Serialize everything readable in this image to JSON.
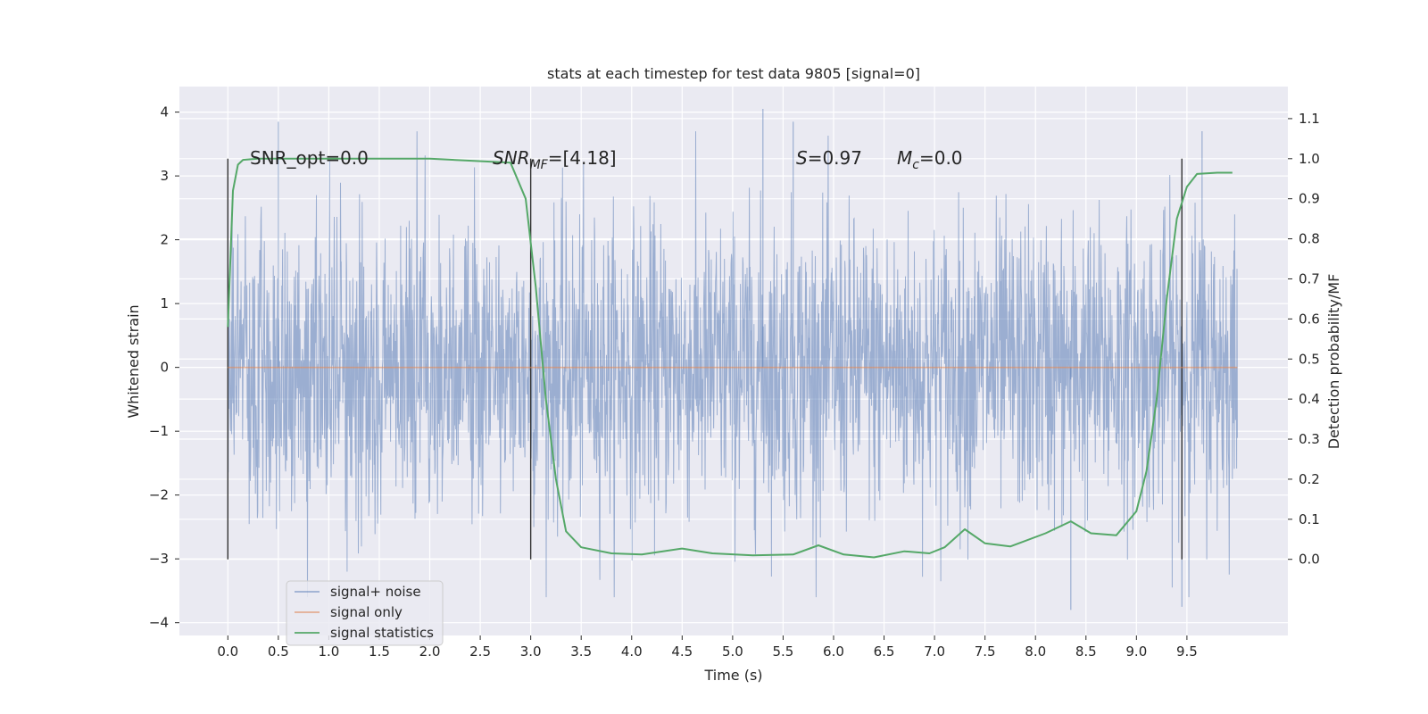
{
  "chart_data": {
    "type": "line",
    "title": "stats at each timestep for test data 9805 [signal=0]",
    "xlabel": "Time (s)",
    "ylabel": "Whitened strain",
    "ylabel_right": "Detection probability/MF",
    "xlim": [
      -0.48,
      10.5
    ],
    "ylim": [
      -4.2,
      4.4
    ],
    "ylim_right": [
      -0.19,
      1.18
    ],
    "x_ticks": [
      "0.0",
      "0.5",
      "1.0",
      "1.5",
      "2.0",
      "2.5",
      "3.0",
      "3.5",
      "4.0",
      "4.5",
      "5.0",
      "5.5",
      "6.0",
      "6.5",
      "7.0",
      "7.5",
      "8.0",
      "8.5",
      "9.0",
      "9.5"
    ],
    "y_ticks": [
      "4",
      "3",
      "2",
      "1",
      "0",
      "−1",
      "−2",
      "−3",
      "−4"
    ],
    "y_right_ticks": [
      "1.1",
      "1.0",
      "0.9",
      "0.8",
      "0.7",
      "0.6",
      "0.5",
      "0.4",
      "0.3",
      "0.2",
      "0.1",
      "0.0"
    ],
    "grid": true,
    "legend_position": "lower-left",
    "background": "#eaeaf2",
    "annotations": [
      {
        "text": "SNR_opt=0.0",
        "x": 0.2,
        "y_right": 0.99
      },
      {
        "text": "SNR_MF=[4.18]",
        "x": 2.6,
        "y_right": 0.99
      },
      {
        "text": "S=0.97",
        "x": 5.6,
        "y_right": 0.99
      },
      {
        "text": "M_c=0.0",
        "x": 6.6,
        "y_right": 0.99
      }
    ],
    "vertical_markers": [
      0.0,
      3.0,
      9.45
    ],
    "series": [
      {
        "name": "signal+ noise",
        "color": "#4c72b0",
        "axis": "left",
        "time_range": [
          0.0,
          10.0
        ],
        "typical_range": [
          -1.1,
          1.3
        ],
        "peak_range": [
          -3.8,
          3.9
        ],
        "notable_peaks": [
          [
            0.5,
            3.85
          ],
          [
            5.3,
            4.05
          ],
          [
            5.6,
            3.85
          ],
          [
            9.65,
            3.7
          ],
          [
            8.35,
            -3.8
          ],
          [
            9.45,
            -3.75
          ]
        ]
      },
      {
        "name": "signal only",
        "color": "#dd8452",
        "axis": "left",
        "x": [
          0.0,
          10.0
        ],
        "y": [
          0.0,
          0.0
        ]
      },
      {
        "name": "signal statistics",
        "color": "#55a868",
        "axis": "right",
        "x": [
          0.0,
          0.05,
          0.1,
          0.15,
          0.3,
          1.0,
          2.0,
          2.8,
          2.95,
          3.05,
          3.15,
          3.25,
          3.35,
          3.5,
          3.8,
          4.1,
          4.5,
          4.8,
          5.2,
          5.6,
          5.85,
          6.1,
          6.4,
          6.7,
          6.95,
          7.1,
          7.3,
          7.5,
          7.75,
          8.1,
          8.35,
          8.55,
          8.8,
          9.0,
          9.1,
          9.2,
          9.3,
          9.4,
          9.5,
          9.6,
          9.8,
          9.95
        ],
        "y": [
          0.58,
          0.92,
          0.985,
          0.997,
          1.0,
          1.0,
          1.0,
          0.99,
          0.9,
          0.68,
          0.4,
          0.2,
          0.07,
          0.03,
          0.015,
          0.012,
          0.027,
          0.015,
          0.01,
          0.012,
          0.035,
          0.012,
          0.005,
          0.02,
          0.015,
          0.03,
          0.075,
          0.04,
          0.032,
          0.065,
          0.095,
          0.065,
          0.06,
          0.12,
          0.22,
          0.4,
          0.65,
          0.85,
          0.93,
          0.962,
          0.965,
          0.965
        ]
      }
    ]
  }
}
